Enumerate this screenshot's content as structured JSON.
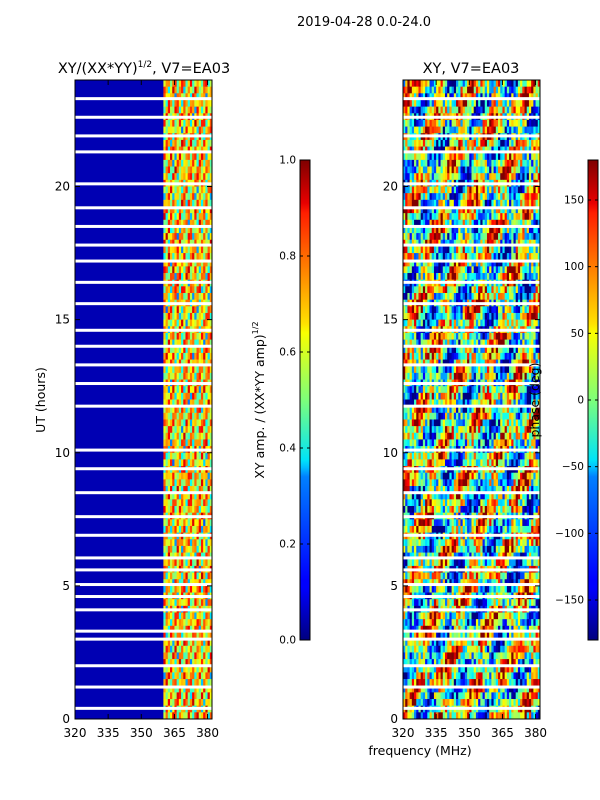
{
  "suptitle": "2019-04-28 0.0-24.0",
  "shared": {
    "xlabel": "frequency (MHz)",
    "x_ticks": [
      "320",
      "335",
      "350",
      "365",
      "380"
    ],
    "x_tick_values": [
      320,
      335,
      350,
      365,
      380
    ],
    "xlim": [
      320,
      382
    ],
    "y_ticks": [
      "0",
      "5",
      "10",
      "15",
      "20"
    ],
    "y_tick_values": [
      0,
      5,
      10,
      15,
      20
    ],
    "ylim": [
      0,
      24
    ]
  },
  "chart_data": [
    {
      "type": "heatmap",
      "title_main": "XY/(XX*YY)",
      "title_sup": "1/2",
      "title_rest": ", V7=EA03",
      "xlabel": "",
      "ylabel": "UT (hours)",
      "xlim": [
        320,
        382
      ],
      "ylim": [
        0,
        24
      ],
      "colorbar": {
        "label_main": "XY amp. / (XX*YY amp)",
        "label_sup": "1/2",
        "range": [
          0.0,
          1.0
        ],
        "ticks": [
          "0.0",
          "0.2",
          "0.4",
          "0.6",
          "0.8",
          "1.0"
        ],
        "tick_values": [
          0.0,
          0.2,
          0.4,
          0.6,
          0.8,
          1.0
        ]
      },
      "signal_band_mhz": [
        360,
        382
      ],
      "background_value": 0.05,
      "flagged_hours": [
        0.4,
        1.2,
        2.0,
        3.0,
        3.3,
        4.1,
        4.6,
        5.05,
        5.6,
        6.05,
        6.9,
        7.6,
        8.5,
        9.4,
        10.1,
        11.75,
        12.6,
        13.3,
        14.0,
        14.6,
        15.6,
        16.4,
        17.2,
        17.8,
        18.5,
        19.2,
        20.1,
        21.3,
        21.9,
        22.6,
        23.3
      ]
    },
    {
      "type": "heatmap",
      "title_main": "XY, V7=EA03",
      "xlabel": "frequency (MHz)",
      "ylabel": "",
      "xlim": [
        320,
        382
      ],
      "ylim": [
        0,
        24
      ],
      "colorbar": {
        "label_main": "phase (deg)",
        "range": [
          -180,
          180
        ],
        "ticks": [
          "−150",
          "−100",
          "−50",
          "0",
          "50",
          "100",
          "150"
        ],
        "tick_values": [
          -150,
          -100,
          -50,
          0,
          50,
          100,
          150
        ]
      },
      "flagged_hours": [
        0.4,
        1.2,
        2.0,
        3.0,
        3.3,
        4.1,
        4.6,
        5.05,
        5.6,
        6.05,
        6.9,
        7.6,
        8.5,
        9.4,
        10.1,
        11.75,
        12.6,
        13.3,
        14.0,
        14.6,
        15.6,
        16.4,
        17.2,
        17.8,
        18.5,
        19.2,
        20.1,
        21.3,
        21.9,
        22.6,
        23.3
      ]
    }
  ]
}
